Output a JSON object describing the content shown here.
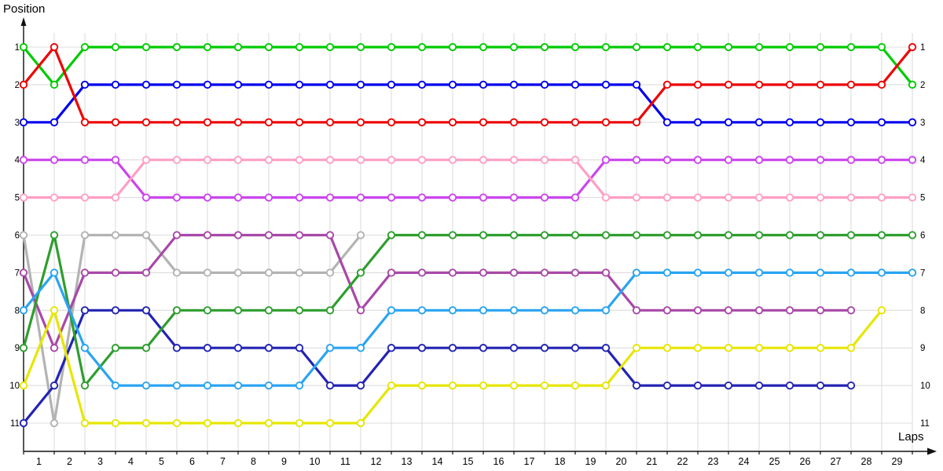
{
  "labels": {
    "y_axis_title": "Position",
    "x_axis_title": "Laps"
  },
  "chart_data": {
    "type": "line",
    "xlabel": "Laps",
    "ylabel": "Position",
    "x_note": "markers sit on 30 gridline columns (race start + end of each lap 1-29); x tick labels 1-29 are centred between gridlines",
    "x_ticks": [
      "1",
      "2",
      "3",
      "4",
      "5",
      "6",
      "7",
      "8",
      "9",
      "10",
      "11",
      "12",
      "13",
      "14",
      "15",
      "16",
      "17",
      "18",
      "19",
      "20",
      "21",
      "22",
      "23",
      "24",
      "25",
      "26",
      "27",
      "28",
      "29"
    ],
    "y_ticks": [
      "1",
      "2",
      "3",
      "4",
      "5",
      "6",
      "7",
      "8",
      "9",
      "10",
      "11"
    ],
    "y_axis": {
      "min": 1,
      "max": 11,
      "inverted": true,
      "labels_on_both_sides": true
    },
    "points_per_series": 30,
    "grid": true,
    "legend": "none",
    "colors": {
      "grid": "#dcdcdc",
      "axis": "#111111",
      "marker_fill": "#ffffff",
      "text": "#000000"
    },
    "series": [
      {
        "name": "gray",
        "color": "#b3b3b3",
        "values": [
          6,
          11,
          6,
          6,
          6,
          7,
          7,
          7,
          7,
          7,
          7,
          6,
          null,
          null,
          null,
          null,
          null,
          null,
          null,
          null,
          null,
          null,
          null,
          null,
          null,
          null,
          null,
          null,
          null,
          null
        ]
      },
      {
        "name": "purple",
        "color": "#a848a8",
        "values": [
          7,
          9,
          7,
          7,
          7,
          6,
          6,
          6,
          6,
          6,
          6,
          8,
          7,
          7,
          7,
          7,
          7,
          7,
          7,
          7,
          8,
          8,
          8,
          8,
          8,
          8,
          8,
          8,
          null,
          null
        ]
      },
      {
        "name": "navy",
        "color": "#2323b4",
        "values": [
          11,
          10,
          8,
          8,
          8,
          9,
          9,
          9,
          9,
          9,
          10,
          10,
          9,
          9,
          9,
          9,
          9,
          9,
          9,
          9,
          10,
          10,
          10,
          10,
          10,
          10,
          10,
          10,
          null,
          null
        ]
      },
      {
        "name": "dark-green",
        "color": "#2e9e2e",
        "values": [
          9,
          6,
          10,
          9,
          9,
          8,
          8,
          8,
          8,
          8,
          8,
          7,
          6,
          6,
          6,
          6,
          6,
          6,
          6,
          6,
          6,
          6,
          6,
          6,
          6,
          6,
          6,
          6,
          6,
          6
        ]
      },
      {
        "name": "sky-blue",
        "color": "#29a4f2",
        "values": [
          8,
          7,
          9,
          10,
          10,
          10,
          10,
          10,
          10,
          10,
          9,
          9,
          8,
          8,
          8,
          8,
          8,
          8,
          8,
          8,
          7,
          7,
          7,
          7,
          7,
          7,
          7,
          7,
          7,
          7
        ]
      },
      {
        "name": "yellow",
        "color": "#e6e600",
        "values": [
          10,
          8,
          11,
          11,
          11,
          11,
          11,
          11,
          11,
          11,
          11,
          11,
          10,
          10,
          10,
          10,
          10,
          10,
          10,
          10,
          9,
          9,
          9,
          9,
          9,
          9,
          9,
          9,
          8,
          null
        ]
      },
      {
        "name": "violet",
        "color": "#cc44ee",
        "values": [
          4,
          4,
          4,
          4,
          5,
          5,
          5,
          5,
          5,
          5,
          5,
          5,
          5,
          5,
          5,
          5,
          5,
          5,
          5,
          4,
          4,
          4,
          4,
          4,
          4,
          4,
          4,
          4,
          4,
          4
        ]
      },
      {
        "name": "pink",
        "color": "#ff9fc4",
        "values": [
          5,
          5,
          5,
          5,
          4,
          4,
          4,
          4,
          4,
          4,
          4,
          4,
          4,
          4,
          4,
          4,
          4,
          4,
          4,
          5,
          5,
          5,
          5,
          5,
          5,
          5,
          5,
          5,
          5,
          5
        ]
      },
      {
        "name": "blue",
        "color": "#0000ee",
        "values": [
          3,
          3,
          2,
          2,
          2,
          2,
          2,
          2,
          2,
          2,
          2,
          2,
          2,
          2,
          2,
          2,
          2,
          2,
          2,
          2,
          2,
          3,
          3,
          3,
          3,
          3,
          3,
          3,
          3,
          3
        ]
      },
      {
        "name": "green",
        "color": "#00cb00",
        "values": [
          1,
          2,
          1,
          1,
          1,
          1,
          1,
          1,
          1,
          1,
          1,
          1,
          1,
          1,
          1,
          1,
          1,
          1,
          1,
          1,
          1,
          1,
          1,
          1,
          1,
          1,
          1,
          1,
          1,
          2
        ]
      },
      {
        "name": "red",
        "color": "#ee0000",
        "values": [
          2,
          1,
          3,
          3,
          3,
          3,
          3,
          3,
          3,
          3,
          3,
          3,
          3,
          3,
          3,
          3,
          3,
          3,
          3,
          3,
          3,
          2,
          2,
          2,
          2,
          2,
          2,
          2,
          2,
          1
        ]
      }
    ]
  }
}
